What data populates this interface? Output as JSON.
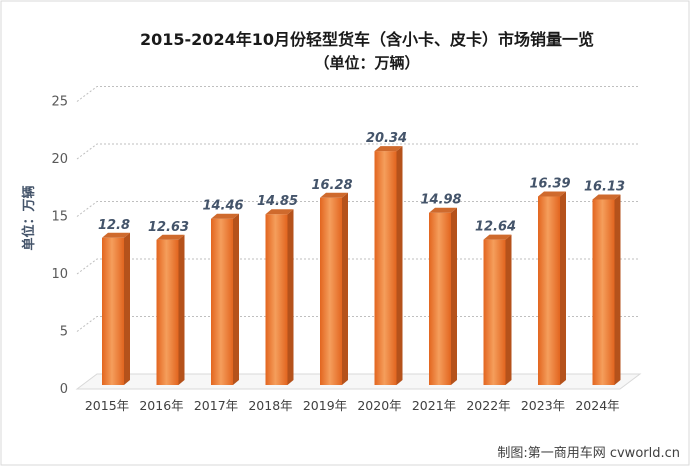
{
  "chart_data": {
    "type": "bar",
    "style": "3d-column",
    "title": "2015-2024年10月份轻型货车（含小卡、皮卡）市场销量一览",
    "subtitle": "（单位：万辆）",
    "xlabel": "",
    "ylabel": "单位：万辆",
    "categories": [
      "2015年",
      "2016年",
      "2017年",
      "2018年",
      "2019年",
      "2020年",
      "2021年",
      "2022年",
      "2023年",
      "2024年"
    ],
    "values": [
      12.8,
      12.63,
      14.46,
      14.85,
      16.28,
      20.34,
      14.98,
      12.64,
      16.39,
      16.13
    ],
    "ylim": [
      0,
      25
    ],
    "yticks": [
      0,
      5,
      10,
      15,
      20,
      25
    ],
    "grid": true,
    "legend": "none",
    "data_labels": true
  },
  "credit": "制图:第一商用车网 cvworld.cn",
  "colors": {
    "bar_light": "#f59e5c",
    "bar_dark": "#e2651f",
    "bar_side": "#b5521b",
    "bar_top": "#cf6a2d",
    "data_label": "#44546a",
    "gridline": "#bfbfbf"
  }
}
